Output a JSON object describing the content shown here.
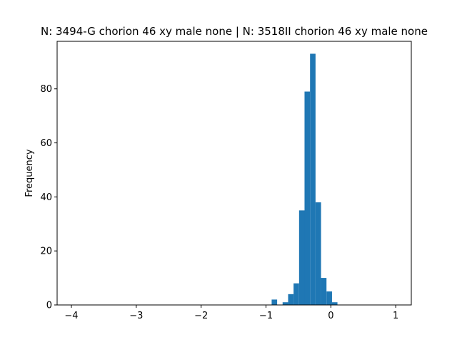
{
  "chart_data": {
    "type": "bar",
    "title": "N: 3494-G chorion 46 xy male none | N: 3518II chorion 46 xy male none",
    "xlabel": "",
    "ylabel": "Frequency",
    "xlim": [
      -4.22,
      1.24
    ],
    "ylim": [
      0,
      97.6
    ],
    "xticks": [
      -4,
      -3,
      -2,
      -1,
      0,
      1
    ],
    "yticks": [
      0,
      20,
      40,
      60,
      80
    ],
    "bar_color": "#1f77b4",
    "grid": false,
    "bin_width": 0.0846,
    "bins": [
      {
        "x0": -0.913,
        "count": 2
      },
      {
        "x0": -0.744,
        "count": 1
      },
      {
        "x0": -0.659,
        "count": 4
      },
      {
        "x0": -0.575,
        "count": 8
      },
      {
        "x0": -0.49,
        "count": 35
      },
      {
        "x0": -0.406,
        "count": 79
      },
      {
        "x0": -0.321,
        "count": 93
      },
      {
        "x0": -0.236,
        "count": 38
      },
      {
        "x0": -0.152,
        "count": 10
      },
      {
        "x0": -0.067,
        "count": 5
      },
      {
        "x0": 0.017,
        "count": 1
      }
    ]
  }
}
